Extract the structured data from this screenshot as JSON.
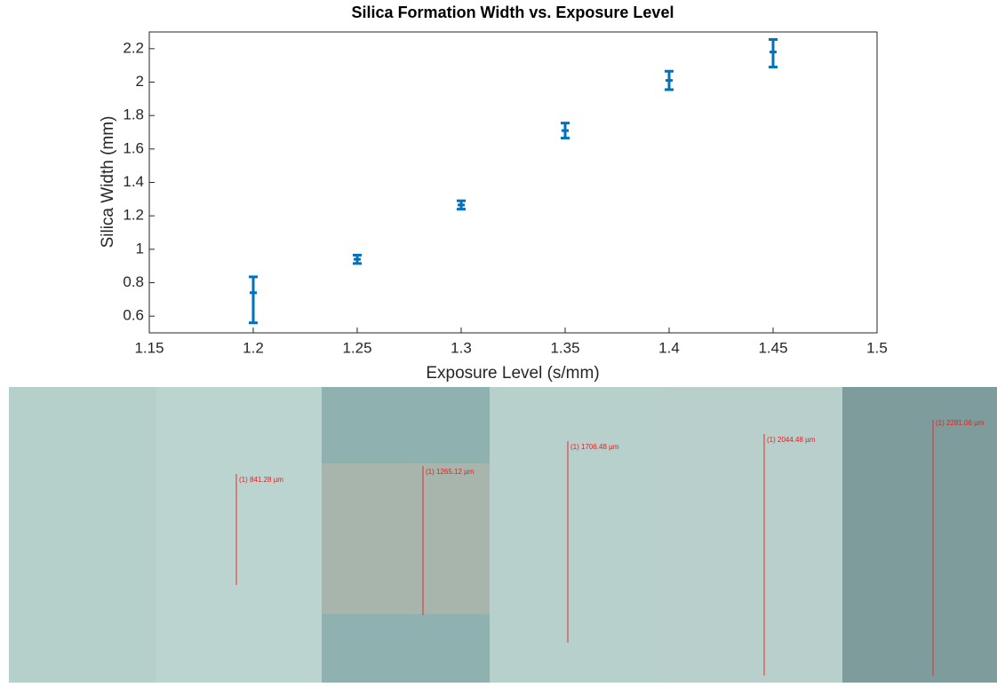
{
  "chart_data": {
    "type": "errorbar",
    "title": "Silica Formation Width vs. Exposure Level",
    "x_label": "Exposure Level (s/mm)",
    "y_label": "Silica Width (mm)",
    "series": [
      {
        "color": "#0072bd",
        "x": [
          1.2,
          1.25,
          1.3,
          1.35,
          1.4,
          1.45
        ],
        "values": [
          0.74,
          0.94,
          1.265,
          1.71,
          2.01,
          2.18
        ],
        "err_low": [
          0.18,
          0.025,
          0.025,
          0.045,
          0.055,
          0.09
        ],
        "err_high": [
          0.095,
          0.025,
          0.025,
          0.045,
          0.055,
          0.075
        ]
      }
    ],
    "xlim": [
      1.15,
      1.5
    ],
    "xticks": [
      1.15,
      1.2,
      1.25,
      1.3,
      1.35,
      1.4,
      1.45,
      1.5
    ],
    "ylim": [
      0.5,
      2.3
    ],
    "yticks": [
      0.6,
      0.8,
      1,
      1.2,
      1.4,
      1.6,
      1.8,
      2,
      2.2
    ]
  },
  "micrographs": {
    "labels": [
      "(1) 841.28 µm",
      "(1) 1265.12 µm",
      "(1) 1706.48 µm",
      "(1) 2044.48 µm",
      "(1) 2281.06 µm"
    ]
  }
}
